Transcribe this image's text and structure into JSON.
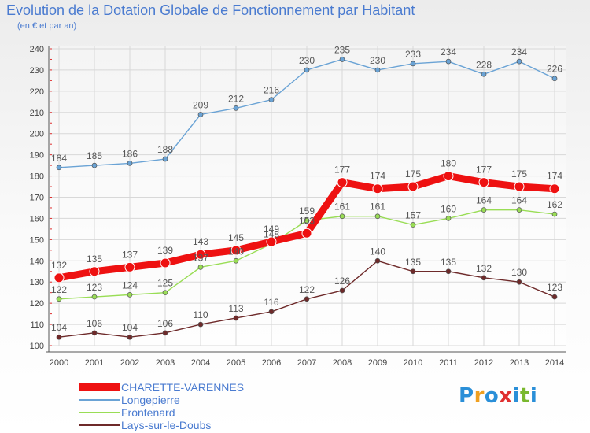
{
  "header": {
    "title": "Evolution de la Dotation Globale de Fonctionnement par Habitant",
    "subtitle": "(en € et par an)"
  },
  "chart_data": {
    "type": "line",
    "title": "Evolution de la Dotation Globale de Fonctionnement par Habitant",
    "subtitle": "(en € et par an)",
    "xlabel": "",
    "ylabel": "",
    "x": [
      2000,
      2001,
      2002,
      2003,
      2004,
      2005,
      2006,
      2007,
      2008,
      2009,
      2010,
      2011,
      2012,
      2013,
      2014
    ],
    "ylim": [
      100,
      240
    ],
    "yticks": [
      100,
      110,
      120,
      130,
      140,
      150,
      160,
      170,
      180,
      190,
      200,
      210,
      220,
      230,
      240
    ],
    "grid": true,
    "legend_position": "bottom-left",
    "series": [
      {
        "name": "CHARETTE-VARENNES",
        "color": "#ee1111",
        "values": [
          132,
          135,
          137,
          139,
          143,
          145,
          149,
          153,
          177,
          174,
          175,
          180,
          177,
          175,
          174
        ],
        "labels": [
          "132",
          "135",
          "137",
          "139",
          "143",
          "145",
          "149",
          "153",
          "177",
          "174",
          "175",
          "180",
          "177",
          "175",
          "174"
        ]
      },
      {
        "name": "Longepierre",
        "color": "#6aa3d5",
        "values": [
          184,
          185,
          186,
          188,
          209,
          212,
          216,
          230,
          235,
          230,
          233,
          234,
          228,
          234,
          226
        ],
        "labels": [
          "184",
          "185",
          "186",
          "188",
          "209",
          "212",
          "216",
          "230",
          "235",
          "230",
          "233",
          "234",
          "228",
          "234",
          "226"
        ]
      },
      {
        "name": "Frontenard",
        "color": "#99dd55",
        "values": [
          122,
          123,
          124,
          125,
          137,
          140,
          148,
          159,
          161,
          161,
          157,
          160,
          164,
          164,
          162
        ],
        "labels": [
          "122",
          "123",
          "124",
          "125",
          "137",
          "140",
          "148",
          "159",
          "161",
          "161",
          "157",
          "160",
          "164",
          "164",
          "162"
        ]
      },
      {
        "name": "Lays-sur-le-Doubs",
        "color": "#6e2a2a",
        "values": [
          104,
          106,
          104,
          106,
          110,
          113,
          116,
          122,
          126,
          140,
          135,
          135,
          132,
          130,
          123
        ],
        "labels": [
          "104",
          "106",
          "104",
          "106",
          "110",
          "113",
          "116",
          "122",
          "126",
          "140",
          "135",
          "135",
          "132",
          "130",
          "123"
        ]
      }
    ]
  },
  "legend": {
    "items": [
      {
        "label": "CHARETTE-VARENNES",
        "color": "#ee1111"
      },
      {
        "label": "Longepierre",
        "color": "#6aa3d5"
      },
      {
        "label": "Frontenard",
        "color": "#99dd55"
      },
      {
        "label": "Lays-sur-le-Doubs",
        "color": "#6e2a2a"
      }
    ]
  },
  "logo": {
    "text": "Proxiti",
    "letters": [
      "P",
      "r",
      "o",
      "x",
      "i",
      "t",
      "i"
    ],
    "colors": [
      "#2a8fd8",
      "#f0a020",
      "#2a8fd8",
      "#e03030",
      "#2a8fd8",
      "#7ab82e",
      "#2a8fd8"
    ]
  }
}
